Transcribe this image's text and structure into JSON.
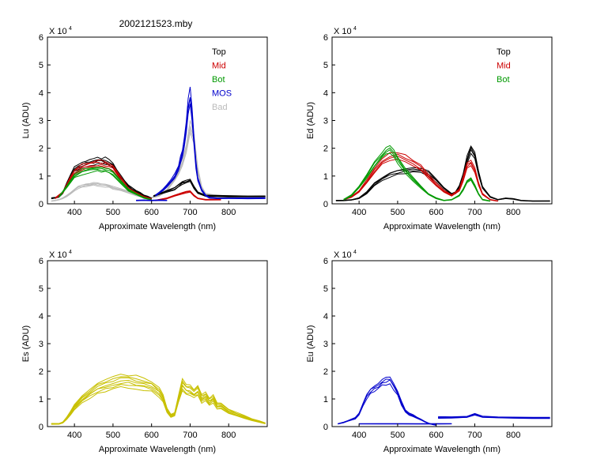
{
  "figure_title": "2002121523.mby",
  "chart_data": [
    {
      "type": "line",
      "panel": "top-left",
      "ylabel": "Lu (ADU)",
      "xlabel": "Approximate Wavelength (nm)",
      "multiplier_label": "X 10",
      "multiplier_exp": "4",
      "xlim": [
        330,
        900
      ],
      "ylim": [
        0,
        6
      ],
      "xticks": [
        400,
        500,
        600,
        700,
        800
      ],
      "yticks": [
        0,
        1,
        2,
        3,
        4,
        5,
        6
      ],
      "legend": [
        {
          "name": "Top",
          "color": "#000000"
        },
        {
          "name": "Mid",
          "color": "#cc0000"
        },
        {
          "name": "Bot",
          "color": "#009900"
        },
        {
          "name": "MOS",
          "color": "#0000cc"
        },
        {
          "name": "Bad",
          "color": "#bbbbbb"
        }
      ],
      "series": [
        {
          "name": "Bad",
          "color": "#bbbbbb",
          "segment": "vis",
          "x": [
            340,
            350,
            360,
            370,
            380,
            390,
            400,
            410,
            420,
            430,
            440,
            450,
            460,
            470,
            480,
            490,
            500,
            520,
            540,
            560,
            580,
            600
          ],
          "values": [
            0.1,
            0.12,
            0.15,
            0.2,
            0.28,
            0.38,
            0.5,
            0.6,
            0.65,
            0.68,
            0.7,
            0.72,
            0.7,
            0.68,
            0.66,
            0.63,
            0.58,
            0.5,
            0.42,
            0.32,
            0.24,
            0.18
          ]
        },
        {
          "name": "Bad",
          "color": "#bbbbbb",
          "segment": "nir",
          "x": [
            600,
            620,
            640,
            650,
            660,
            670,
            680,
            690,
            700,
            710,
            720,
            730,
            740,
            760,
            800,
            850,
            895
          ],
          "values": [
            0.22,
            0.3,
            0.5,
            0.7,
            0.9,
            1.1,
            1.5,
            2.0,
            2.8,
            2.4,
            1.2,
            0.6,
            0.35,
            0.3,
            0.26,
            0.25,
            0.25
          ]
        },
        {
          "name": "Top",
          "color": "#000000",
          "segment": "vis",
          "x": [
            340,
            350,
            360,
            370,
            380,
            390,
            400,
            410,
            420,
            430,
            440,
            450,
            460,
            470,
            480,
            490,
            500,
            510,
            520,
            530,
            540,
            550,
            560,
            570,
            580,
            590,
            600
          ],
          "values": [
            0.2,
            0.22,
            0.25,
            0.4,
            0.7,
            1.0,
            1.25,
            1.35,
            1.42,
            1.46,
            1.5,
            1.53,
            1.55,
            1.55,
            1.54,
            1.5,
            1.4,
            1.15,
            0.95,
            0.8,
            0.65,
            0.55,
            0.45,
            0.38,
            0.3,
            0.25,
            0.2
          ]
        },
        {
          "name": "Top",
          "color": "#000000",
          "segment": "nir",
          "x": [
            605,
            620,
            640,
            660,
            670,
            680,
            690,
            700,
            710,
            720,
            740,
            760,
            800,
            850,
            895
          ],
          "values": [
            0.28,
            0.35,
            0.45,
            0.55,
            0.65,
            0.75,
            0.8,
            0.85,
            0.6,
            0.4,
            0.3,
            0.28,
            0.27,
            0.27,
            0.27
          ]
        },
        {
          "name": "Mid",
          "color": "#cc0000",
          "segment": "vis",
          "x": [
            350,
            370,
            390,
            400,
            420,
            440,
            460,
            470,
            480,
            490,
            500,
            520,
            540,
            560,
            580,
            600
          ],
          "values": [
            0.2,
            0.4,
            0.95,
            1.15,
            1.32,
            1.4,
            1.44,
            1.45,
            1.43,
            1.38,
            1.3,
            0.9,
            0.55,
            0.38,
            0.25,
            0.18
          ]
        },
        {
          "name": "Mid",
          "color": "#cc0000",
          "segment": "nir",
          "x": [
            610,
            640,
            660,
            680,
            690,
            700,
            710,
            720,
            740,
            780
          ],
          "values": [
            0.12,
            0.2,
            0.3,
            0.38,
            0.42,
            0.45,
            0.3,
            0.2,
            0.15,
            0.15
          ]
        },
        {
          "name": "Bot",
          "color": "#009900",
          "segment": "vis",
          "x": [
            360,
            380,
            400,
            420,
            440,
            460,
            470,
            480,
            490,
            500,
            520,
            540,
            560,
            580,
            600
          ],
          "values": [
            0.25,
            0.6,
            1.0,
            1.15,
            1.22,
            1.25,
            1.25,
            1.23,
            1.18,
            1.1,
            0.8,
            0.5,
            0.35,
            0.22,
            0.15
          ]
        },
        {
          "name": "MOS",
          "color": "#0000cc",
          "segment": "vis",
          "x": [
            560,
            580,
            600,
            620,
            640
          ],
          "values": [
            0.12,
            0.13,
            0.12,
            0.13,
            0.12
          ]
        },
        {
          "name": "MOS",
          "color": "#0000cc",
          "segment": "nir",
          "x": [
            610,
            620,
            630,
            640,
            650,
            660,
            670,
            675,
            680,
            685,
            690,
            695,
            700,
            705,
            710,
            715,
            720,
            730,
            740,
            750,
            770,
            800,
            850,
            895
          ],
          "values": [
            0.3,
            0.4,
            0.5,
            0.65,
            0.8,
            1.0,
            1.3,
            1.6,
            1.85,
            2.2,
            2.8,
            3.5,
            3.85,
            3.2,
            2.3,
            1.4,
            0.9,
            0.5,
            0.3,
            0.22,
            0.2,
            0.2,
            0.2,
            0.2
          ]
        }
      ]
    },
    {
      "type": "line",
      "panel": "top-right",
      "ylabel": "Ed  (ADU)",
      "xlabel": "Approximate Wavelength (nm)",
      "multiplier_label": "X 10",
      "multiplier_exp": "4",
      "xlim": [
        330,
        900
      ],
      "ylim": [
        0,
        6
      ],
      "xticks": [
        400,
        500,
        600,
        700,
        800
      ],
      "yticks": [
        0,
        1,
        2,
        3,
        4,
        5,
        6
      ],
      "legend": [
        {
          "name": "Top",
          "color": "#000000"
        },
        {
          "name": "Mid",
          "color": "#cc0000"
        },
        {
          "name": "Bot",
          "color": "#009900"
        }
      ],
      "series": [
        {
          "name": "Top",
          "color": "#000000",
          "x": [
            340,
            360,
            380,
            400,
            420,
            440,
            460,
            480,
            500,
            520,
            540,
            560,
            580,
            600,
            620,
            640,
            650,
            660,
            670,
            680,
            690,
            700,
            710,
            720,
            740,
            760,
            780,
            800,
            820,
            850,
            895
          ],
          "values": [
            0.12,
            0.12,
            0.14,
            0.2,
            0.4,
            0.7,
            0.9,
            1.05,
            1.15,
            1.2,
            1.25,
            1.2,
            1.1,
            0.85,
            0.55,
            0.35,
            0.4,
            0.6,
            1.0,
            1.6,
            1.95,
            1.7,
            1.1,
            0.6,
            0.25,
            0.15,
            0.2,
            0.18,
            0.12,
            0.1,
            0.1
          ]
        },
        {
          "name": "Mid",
          "color": "#cc0000",
          "x": [
            360,
            380,
            400,
            420,
            440,
            460,
            480,
            500,
            520,
            540,
            560,
            580,
            600,
            620,
            640,
            660,
            670,
            680,
            690,
            700,
            710,
            720,
            740,
            760
          ],
          "values": [
            0.15,
            0.25,
            0.45,
            0.8,
            1.2,
            1.5,
            1.7,
            1.75,
            1.65,
            1.5,
            1.3,
            1.0,
            0.7,
            0.45,
            0.3,
            0.5,
            0.9,
            1.4,
            1.5,
            1.2,
            0.7,
            0.35,
            0.15,
            0.1
          ]
        },
        {
          "name": "Bot",
          "color": "#009900",
          "x": [
            360,
            380,
            400,
            420,
            440,
            460,
            470,
            480,
            490,
            500,
            520,
            540,
            560,
            580,
            600,
            620,
            640,
            660,
            670,
            680,
            690,
            700,
            710,
            720,
            740
          ],
          "values": [
            0.15,
            0.3,
            0.6,
            1.0,
            1.4,
            1.75,
            1.9,
            2.0,
            1.85,
            1.6,
            1.2,
            0.9,
            0.6,
            0.35,
            0.2,
            0.12,
            0.15,
            0.3,
            0.5,
            0.8,
            0.9,
            0.65,
            0.35,
            0.15,
            0.1
          ]
        }
      ]
    },
    {
      "type": "line",
      "panel": "bottom-left",
      "ylabel": "Es  (ADU)",
      "xlabel": "Approximate Wavelength (nm)",
      "multiplier_label": "X 10",
      "multiplier_exp": "4",
      "xlim": [
        330,
        900
      ],
      "ylim": [
        0,
        6
      ],
      "xticks": [
        400,
        500,
        600,
        700,
        800
      ],
      "yticks": [
        0,
        1,
        2,
        3,
        4,
        5,
        6
      ],
      "legend": [],
      "series": [
        {
          "name": "Es",
          "color": "#c8c000",
          "x": [
            340,
            360,
            370,
            380,
            390,
            400,
            420,
            440,
            460,
            480,
            500,
            520,
            540,
            560,
            580,
            600,
            620,
            630,
            640,
            650,
            660,
            670,
            680,
            690,
            700,
            710,
            720,
            730,
            740,
            750,
            760,
            770,
            780,
            800,
            820,
            840,
            860,
            880,
            895
          ],
          "values": [
            0.1,
            0.1,
            0.15,
            0.3,
            0.5,
            0.7,
            1.0,
            1.2,
            1.4,
            1.5,
            1.6,
            1.65,
            1.65,
            1.6,
            1.55,
            1.45,
            1.25,
            1.0,
            0.6,
            0.4,
            0.45,
            1.0,
            1.5,
            1.35,
            1.3,
            1.2,
            1.3,
            1.0,
            1.1,
            0.9,
            1.0,
            0.75,
            0.75,
            0.55,
            0.45,
            0.35,
            0.25,
            0.18,
            0.12
          ]
        }
      ]
    },
    {
      "type": "line",
      "panel": "bottom-right",
      "ylabel": "Eu  (ADU)",
      "xlabel": "Approximate Wavelength (nm)",
      "multiplier_label": "X 10",
      "multiplier_exp": "4",
      "xlim": [
        330,
        900
      ],
      "ylim": [
        0,
        6
      ],
      "xticks": [
        400,
        500,
        600,
        700,
        800
      ],
      "yticks": [
        0,
        1,
        2,
        3,
        4,
        5,
        6
      ],
      "legend": [],
      "series": [
        {
          "name": "Eu",
          "color": "#0000cc",
          "segment": "vis",
          "x": [
            345,
            360,
            370,
            380,
            390,
            400,
            410,
            420,
            430,
            440,
            450,
            460,
            470,
            480,
            490,
            500,
            510,
            520,
            530,
            540,
            550,
            560,
            570,
            580,
            590,
            600
          ],
          "values": [
            0.1,
            0.15,
            0.2,
            0.25,
            0.3,
            0.45,
            0.8,
            1.1,
            1.3,
            1.4,
            1.5,
            1.6,
            1.65,
            1.7,
            1.45,
            1.2,
            0.85,
            0.55,
            0.45,
            0.4,
            0.32,
            0.25,
            0.18,
            0.12,
            0.08,
            0.05
          ]
        },
        {
          "name": "Eu",
          "color": "#0000cc",
          "segment": "flat",
          "x": [
            400,
            450,
            500,
            550,
            600,
            640
          ],
          "values": [
            0.1,
            0.1,
            0.1,
            0.1,
            0.1,
            0.1
          ]
        },
        {
          "name": "Eu",
          "color": "#0000cc",
          "segment": "nir",
          "x": [
            605,
            640,
            680,
            700,
            720,
            760,
            800,
            850,
            895
          ],
          "values": [
            0.33,
            0.33,
            0.35,
            0.45,
            0.35,
            0.33,
            0.32,
            0.32,
            0.32
          ]
        }
      ]
    }
  ]
}
